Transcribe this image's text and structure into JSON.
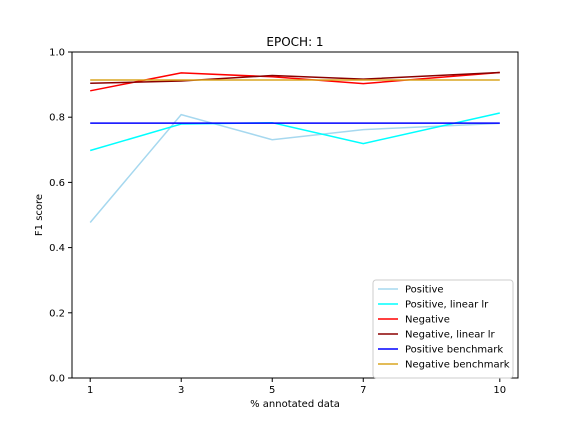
{
  "chart_data": {
    "type": "line",
    "title": "EPOCH: 1",
    "xlabel": "% annotated data",
    "ylabel": "F1 score",
    "x": [
      1,
      3,
      5,
      7,
      10
    ],
    "xticks": [
      "1",
      "3",
      "5",
      "7",
      "10"
    ],
    "yticks": [
      "0.0",
      "0.2",
      "0.4",
      "0.6",
      "0.8",
      "1.0"
    ],
    "xlim": [
      0.6,
      10.4
    ],
    "ylim": [
      0.0,
      1.0
    ],
    "grid": false,
    "legend_position": "lower-right",
    "series": [
      {
        "name": "Positive",
        "color": "#a6d8ef",
        "values": [
          0.477,
          0.808,
          0.731,
          0.762,
          0.781
        ]
      },
      {
        "name": "Positive, linear lr",
        "color": "#00ffff",
        "values": [
          0.698,
          0.779,
          0.783,
          0.719,
          0.813
        ]
      },
      {
        "name": "Negative",
        "color": "#ff0000",
        "values": [
          0.881,
          0.936,
          0.924,
          0.903,
          0.937
        ]
      },
      {
        "name": "Negative, linear lr",
        "color": "#8b0000",
        "values": [
          0.904,
          0.911,
          0.928,
          0.917,
          0.937
        ]
      },
      {
        "name": "Positive benchmark",
        "color": "#0000ff",
        "values": [
          0.782,
          0.782,
          0.782,
          0.782,
          0.782
        ]
      },
      {
        "name": "Negative benchmark",
        "color": "#daa520",
        "values": [
          0.914,
          0.914,
          0.914,
          0.914,
          0.914
        ]
      }
    ]
  }
}
